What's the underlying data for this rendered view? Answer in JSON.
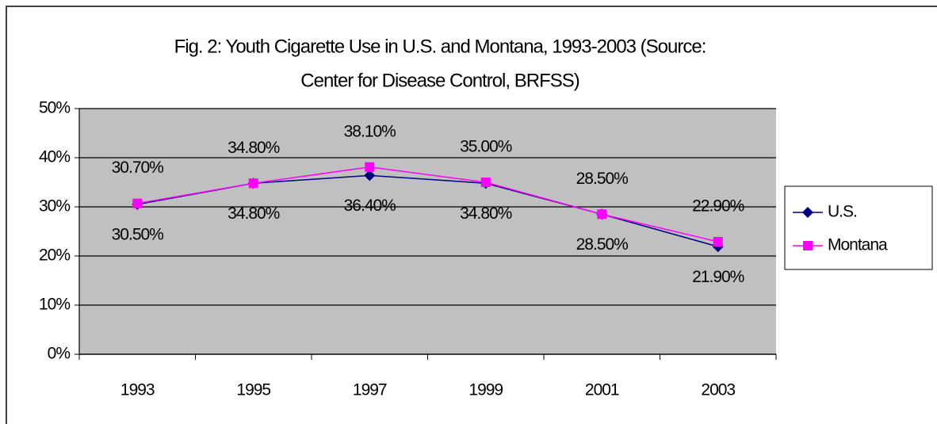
{
  "chart_data": {
    "type": "line",
    "title": [
      "Fig. 2: Youth Cigarette Use in U.S. and Montana, 1993-2003 (Source:",
      "Center for Disease Control, BRFSS)"
    ],
    "categories": [
      "1993",
      "1995",
      "1997",
      "1999",
      "2001",
      "2003"
    ],
    "series": [
      {
        "name": "U.S.",
        "color": "#000080",
        "marker": "diamond",
        "label_side": "below",
        "values": [
          30.5,
          34.8,
          36.4,
          34.8,
          28.5,
          21.9
        ],
        "value_labels": [
          "30.50%",
          "34.80%",
          "36.40%",
          "34.80%",
          "28.50%",
          "21.90%"
        ]
      },
      {
        "name": "Montana",
        "color": "#ff00ff",
        "marker": "square",
        "label_side": "above",
        "values": [
          30.7,
          34.8,
          38.1,
          35.0,
          28.5,
          22.9
        ],
        "value_labels": [
          "30.70%",
          "34.80%",
          "38.10%",
          "35.00%",
          "28.50%",
          "22.90%"
        ]
      }
    ],
    "ylim": [
      0,
      50
    ],
    "yticks": [
      {
        "value": 0,
        "label": "0%"
      },
      {
        "value": 10,
        "label": "10%"
      },
      {
        "value": 20,
        "label": "20%"
      },
      {
        "value": 30,
        "label": "30%"
      },
      {
        "value": 40,
        "label": "40%"
      },
      {
        "value": 50,
        "label": "50%"
      }
    ],
    "grid": true,
    "legend": "right",
    "plot_background": "#c0c0c0"
  }
}
